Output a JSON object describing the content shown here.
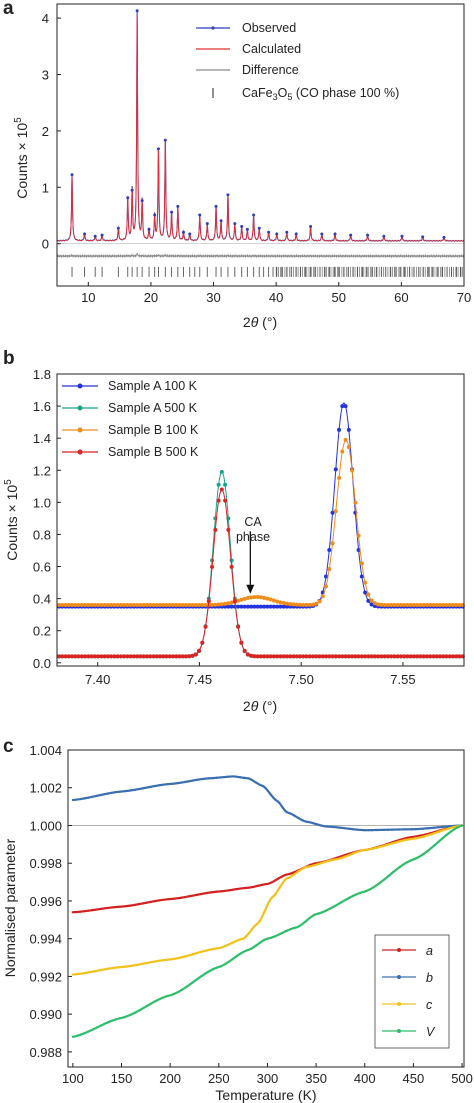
{
  "chart_data": [
    {
      "panel": "a",
      "type": "line",
      "xlabel_prefix": "2",
      "xlabel_theta": "θ",
      "xlabel_unit": " (°)",
      "ylabel_main": "Counts × 10",
      "ylabel_exp": "5",
      "xlim": [
        5,
        70
      ],
      "ylim": [
        -0.75,
        4.25
      ],
      "xticks": [
        10,
        20,
        30,
        40,
        50,
        60,
        70
      ],
      "xtick_labels": [
        "10",
        "20",
        "30",
        "40",
        "50",
        "60",
        "70"
      ],
      "yticks": [
        0,
        1,
        2,
        3,
        4
      ],
      "ytick_labels": [
        "0",
        "1",
        "2",
        "3",
        "4"
      ],
      "legend": {
        "observed": "Observed",
        "calculated": "Calculated",
        "difference": "Difference",
        "phase_main": "CaFe",
        "phase_sub1": "3",
        "phase_mid": "O",
        "phase_sub2": "5",
        "phase_tail": " (CO phase 100 %)"
      },
      "colors": {
        "observed": "#2f3fb8",
        "calculated": "#e03030",
        "difference": "#8a8a8a",
        "ticks": "#555555"
      },
      "background": 0.05,
      "difference_offset": -0.22,
      "tick_row_y": -0.5,
      "peaks": [
        {
          "x": 7.4,
          "y": 1.15
        },
        {
          "x": 9.4,
          "y": 0.12
        },
        {
          "x": 11.1,
          "y": 0.08
        },
        {
          "x": 12.2,
          "y": 0.1
        },
        {
          "x": 14.8,
          "y": 0.22
        },
        {
          "x": 16.3,
          "y": 0.75
        },
        {
          "x": 17.0,
          "y": 0.88
        },
        {
          "x": 17.8,
          "y": 4.0
        },
        {
          "x": 18.6,
          "y": 0.7
        },
        {
          "x": 19.7,
          "y": 0.2
        },
        {
          "x": 20.6,
          "y": 0.45
        },
        {
          "x": 21.2,
          "y": 1.6
        },
        {
          "x": 22.3,
          "y": 1.75
        },
        {
          "x": 23.3,
          "y": 0.5
        },
        {
          "x": 24.3,
          "y": 0.6
        },
        {
          "x": 25.2,
          "y": 0.15
        },
        {
          "x": 26.2,
          "y": 0.12
        },
        {
          "x": 27.8,
          "y": 0.45
        },
        {
          "x": 29.0,
          "y": 0.3
        },
        {
          "x": 30.4,
          "y": 0.6
        },
        {
          "x": 31.2,
          "y": 0.35
        },
        {
          "x": 32.3,
          "y": 0.8
        },
        {
          "x": 33.4,
          "y": 0.3
        },
        {
          "x": 34.5,
          "y": 0.25
        },
        {
          "x": 35.4,
          "y": 0.2
        },
        {
          "x": 36.4,
          "y": 0.45
        },
        {
          "x": 37.3,
          "y": 0.22
        },
        {
          "x": 38.8,
          "y": 0.15
        },
        {
          "x": 40.1,
          "y": 0.12
        },
        {
          "x": 41.7,
          "y": 0.15
        },
        {
          "x": 43.2,
          "y": 0.12
        },
        {
          "x": 45.5,
          "y": 0.25
        },
        {
          "x": 47.3,
          "y": 0.12
        },
        {
          "x": 49.4,
          "y": 0.12
        },
        {
          "x": 51.9,
          "y": 0.1
        },
        {
          "x": 54.6,
          "y": 0.1
        },
        {
          "x": 57.2,
          "y": 0.08
        },
        {
          "x": 60.1,
          "y": 0.08
        },
        {
          "x": 63.4,
          "y": 0.07
        },
        {
          "x": 66.8,
          "y": 0.06
        }
      ],
      "reflection_positions": [
        7.4,
        9.4,
        11.1,
        12.2,
        14.8,
        16.3,
        17.0,
        17.8,
        18.6,
        19.7,
        20.6,
        21.2,
        22.3,
        23.3,
        24.3,
        25.2,
        26.2,
        27.0,
        27.8,
        29.0,
        30.4,
        31.2,
        32.3,
        33.4,
        34.5,
        35.4,
        36.4,
        37.3,
        38.0,
        38.8,
        39.5,
        40.1,
        40.9,
        41.7,
        42.4,
        43.2,
        43.9,
        44.7,
        45.5,
        46.2,
        47.0,
        47.8,
        48.5,
        49.3,
        50.0,
        50.8,
        51.5,
        52.3,
        53.0,
        53.8,
        54.5,
        55.3,
        56.0,
        56.8,
        57.5,
        58.3,
        59.0,
        59.8,
        60.5,
        61.3,
        62.0,
        62.8,
        63.5,
        64.3,
        65.0,
        65.8,
        66.5,
        67.3,
        68.0,
        68.8,
        69.5
      ]
    },
    {
      "panel": "b",
      "type": "line",
      "xlabel_prefix": "2",
      "xlabel_theta": "θ",
      "xlabel_unit": " (°)",
      "ylabel_main": "Counts × 10",
      "ylabel_exp": "5",
      "xlim": [
        7.38,
        7.58
      ],
      "ylim": [
        -0.02,
        1.8
      ],
      "xticks": [
        7.4,
        7.45,
        7.5,
        7.55
      ],
      "xtick_labels": [
        "7.40",
        "7.45",
        "7.50",
        "7.55"
      ],
      "yticks": [
        0,
        0.2,
        0.4,
        0.6,
        0.8,
        1.0,
        1.2,
        1.4,
        1.6,
        1.8
      ],
      "ytick_labels": [
        "0.0",
        "0.2",
        "0.4",
        "0.6",
        "0.8",
        "1.0",
        "1.2",
        "1.4",
        "1.6",
        "1.8"
      ],
      "annotation": [
        "CA",
        "phase"
      ],
      "annotation_arrow": {
        "x": 7.475,
        "y_from": 0.82,
        "y_to": 0.43
      },
      "series": [
        {
          "name": "Sample A 100 K",
          "color": "#2233dd",
          "baseline": 0.35,
          "peaks": [
            {
              "center": 7.521,
              "height": 1.27,
              "width": 0.0045
            }
          ]
        },
        {
          "name": "Sample A 500 K",
          "color": "#1aa58a",
          "baseline": 0.04,
          "peaks": [
            {
              "center": 7.461,
              "height": 1.15,
              "width": 0.0042
            }
          ]
        },
        {
          "name": "Sample B 100 K",
          "color": "#f08c1a",
          "baseline": 0.36,
          "peaks": [
            {
              "center": 7.522,
              "height": 1.03,
              "width": 0.0047
            },
            {
              "center": 7.478,
              "height": 0.05,
              "width": 0.008
            }
          ]
        },
        {
          "name": "Sample B 500 K",
          "color": "#dd2222",
          "baseline": 0.04,
          "peaks": [
            {
              "center": 7.461,
              "height": 1.04,
              "width": 0.0043
            }
          ]
        }
      ]
    },
    {
      "panel": "c",
      "type": "line",
      "xlabel": "Temperature (K)",
      "ylabel": "Normalised parameter",
      "xlim": [
        95,
        502
      ],
      "ylim": [
        0.9872,
        1.004
      ],
      "xticks": [
        100,
        150,
        200,
        250,
        300,
        350,
        400,
        450,
        500
      ],
      "xtick_labels": [
        "100",
        "150",
        "200",
        "250",
        "300",
        "350",
        "400",
        "450",
        "500"
      ],
      "yticks": [
        0.988,
        0.99,
        0.992,
        0.994,
        0.996,
        0.998,
        1.0,
        1.002,
        1.004
      ],
      "ytick_labels": [
        "0.988",
        "0.990",
        "0.992",
        "0.994",
        "0.996",
        "0.998",
        "1.000",
        "1.002",
        "1.004"
      ],
      "reference_line": 1.0,
      "series": [
        {
          "name": "a",
          "color": "#d42020",
          "points": [
            [
              100,
              0.9954
            ],
            [
              150,
              0.9957
            ],
            [
              200,
              0.9961
            ],
            [
              250,
              0.9965
            ],
            [
              280,
              0.9967
            ],
            [
              300,
              0.9969
            ],
            [
              320,
              0.9974
            ],
            [
              350,
              0.998
            ],
            [
              400,
              0.9987
            ],
            [
              450,
              0.9994
            ],
            [
              500,
              1.0
            ]
          ]
        },
        {
          "name": "b",
          "color": "#3a6fb0",
          "points": [
            [
              100,
              1.00135
            ],
            [
              150,
              1.0018
            ],
            [
              200,
              1.0022
            ],
            [
              240,
              1.0025
            ],
            [
              265,
              1.0026
            ],
            [
              280,
              1.0025
            ],
            [
              295,
              1.0021
            ],
            [
              310,
              1.0013
            ],
            [
              320,
              1.0007
            ],
            [
              340,
              1.0002
            ],
            [
              360,
              0.99995
            ],
            [
              400,
              0.99975
            ],
            [
              450,
              0.9998
            ],
            [
              500,
              1.0
            ]
          ]
        },
        {
          "name": "c",
          "color": "#f2c21a",
          "points": [
            [
              100,
              0.9921
            ],
            [
              150,
              0.9925
            ],
            [
              200,
              0.9929
            ],
            [
              250,
              0.9935
            ],
            [
              275,
              0.994
            ],
            [
              290,
              0.9948
            ],
            [
              305,
              0.9962
            ],
            [
              320,
              0.9972
            ],
            [
              340,
              0.9978
            ],
            [
              370,
              0.9982
            ],
            [
              400,
              0.9987
            ],
            [
              450,
              0.9993
            ],
            [
              500,
              1.0
            ]
          ]
        },
        {
          "name": "V",
          "color": "#2ebe6a",
          "points": [
            [
              100,
              0.9888
            ],
            [
              150,
              0.9898
            ],
            [
              200,
              0.991
            ],
            [
              250,
              0.9925
            ],
            [
              280,
              0.9934
            ],
            [
              300,
              0.994
            ],
            [
              330,
              0.9946
            ],
            [
              350,
              0.9953
            ],
            [
              400,
              0.9965
            ],
            [
              450,
              0.9982
            ],
            [
              500,
              1.0
            ]
          ]
        }
      ]
    }
  ]
}
